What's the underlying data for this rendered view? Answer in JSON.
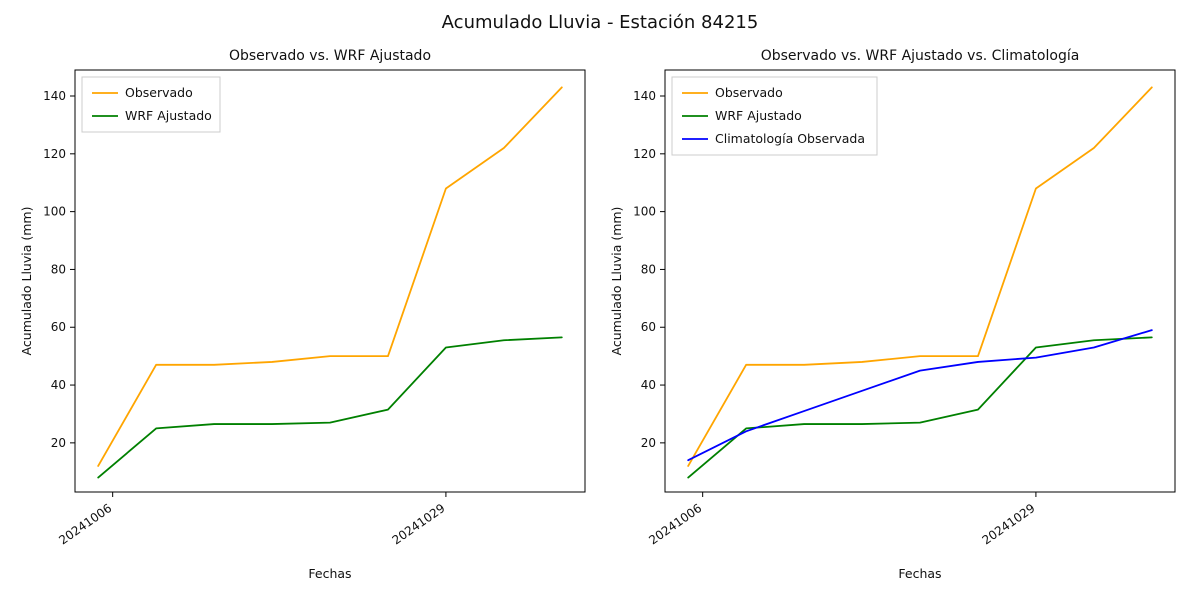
{
  "figure": {
    "title": "Acumulado Lluvia - Estación 84215",
    "background": "#ffffff"
  },
  "colors": {
    "observado": "#ffa500",
    "wrf_ajustado": "#008000",
    "climatologia": "#0000ff",
    "axis": "#000000",
    "legend_border": "#cccccc"
  },
  "chart_data": [
    {
      "type": "line",
      "title": "Observado vs. WRF Ajustado",
      "xlabel": "Fechas",
      "ylabel": "Acumulado Lluvia (mm)",
      "x": [
        0,
        4,
        8,
        12,
        16,
        20,
        24,
        28,
        32
      ],
      "x_dates": [
        "20241005",
        "20241009",
        "20241013",
        "20241017",
        "20241021",
        "20241025",
        "20241029",
        "20241102",
        "20241106"
      ],
      "xlim": [
        -1.6,
        33.6
      ],
      "ylim": [
        3,
        149
      ],
      "yticks": [
        20,
        40,
        60,
        80,
        100,
        120,
        140
      ],
      "xticks": [
        {
          "pos": 1,
          "label": "20241006"
        },
        {
          "pos": 24,
          "label": "20241029"
        }
      ],
      "grid": false,
      "legend_position": "upper left",
      "series": [
        {
          "name": "Observado",
          "color": "#ffa500",
          "values": [
            12,
            47,
            47,
            48,
            50,
            50,
            108,
            122,
            143
          ]
        },
        {
          "name": "WRF Ajustado",
          "color": "#008000",
          "values": [
            8,
            25,
            26.5,
            26.5,
            27,
            31.5,
            53,
            55.5,
            56.5
          ]
        }
      ]
    },
    {
      "type": "line",
      "title": "Observado vs. WRF Ajustado vs. Climatología",
      "xlabel": "Fechas",
      "ylabel": "Acumulado Lluvia (mm)",
      "x": [
        0,
        4,
        8,
        12,
        16,
        20,
        24,
        28,
        32
      ],
      "x_dates": [
        "20241005",
        "20241009",
        "20241013",
        "20241017",
        "20241021",
        "20241025",
        "20241029",
        "20241102",
        "20241106"
      ],
      "xlim": [
        -1.6,
        33.6
      ],
      "ylim": [
        3,
        149
      ],
      "yticks": [
        20,
        40,
        60,
        80,
        100,
        120,
        140
      ],
      "xticks": [
        {
          "pos": 1,
          "label": "20241006"
        },
        {
          "pos": 24,
          "label": "20241029"
        }
      ],
      "grid": false,
      "legend_position": "upper left",
      "series": [
        {
          "name": "Observado",
          "color": "#ffa500",
          "values": [
            12,
            47,
            47,
            48,
            50,
            50,
            108,
            122,
            143
          ]
        },
        {
          "name": "WRF Ajustado",
          "color": "#008000",
          "values": [
            8,
            25,
            26.5,
            26.5,
            27,
            31.5,
            53,
            55.5,
            56.5
          ]
        },
        {
          "name": "Climatología Observada",
          "color": "#0000ff",
          "values": [
            14,
            24,
            31,
            38,
            45,
            48,
            49.5,
            53,
            59
          ]
        }
      ]
    }
  ],
  "layout_note": "two side-by-side line subplots sharing one figure title"
}
